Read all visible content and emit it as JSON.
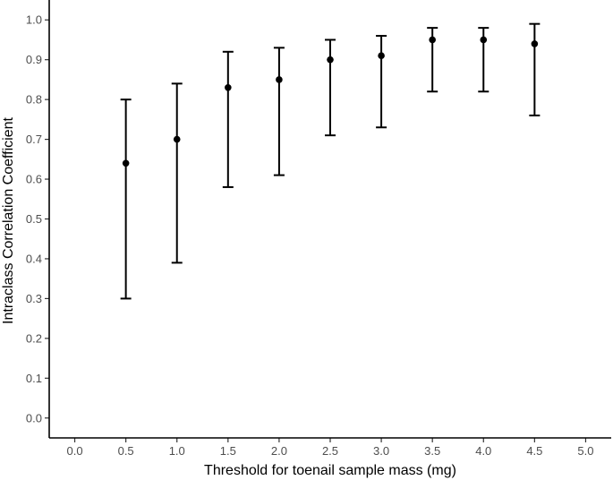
{
  "chart_data": {
    "type": "scatter",
    "title": "",
    "xlabel": "Threshold for toenail sample mass (mg)",
    "ylabel": "Intraclass Correlation Coefficient",
    "xlim": [
      -0.25,
      5.25
    ],
    "ylim": [
      -0.05,
      1.05
    ],
    "x_ticks": [
      0.0,
      0.5,
      1.0,
      1.5,
      2.0,
      2.5,
      3.0,
      3.5,
      4.0,
      4.5,
      5.0
    ],
    "x_tick_labels": [
      "0.0",
      "0.5",
      "1.0",
      "1.5",
      "2.0",
      "2.5",
      "3.0",
      "3.5",
      "4.0",
      "4.5",
      "5.0"
    ],
    "y_ticks": [
      0.0,
      0.1,
      0.2,
      0.3,
      0.4,
      0.5,
      0.6,
      0.7,
      0.8,
      0.9,
      1.0
    ],
    "y_tick_labels": [
      "0.0",
      "0.1",
      "0.2",
      "0.3",
      "0.4",
      "0.5",
      "0.6",
      "0.7",
      "0.8",
      "0.9",
      "1.0"
    ],
    "grid": false,
    "series": [
      {
        "x": [
          0.5,
          1.0,
          1.5,
          2.0,
          2.5,
          3.0,
          3.5,
          4.0,
          4.5
        ],
        "y": [
          0.64,
          0.7,
          0.83,
          0.85,
          0.9,
          0.91,
          0.95,
          0.95,
          0.94
        ],
        "lower": [
          0.3,
          0.39,
          0.58,
          0.61,
          0.71,
          0.73,
          0.82,
          0.82,
          0.76
        ],
        "upper": [
          0.8,
          0.84,
          0.92,
          0.93,
          0.95,
          0.96,
          0.98,
          0.98,
          0.99
        ]
      }
    ],
    "colors": {
      "points": "#000000",
      "axis": "#000000",
      "tick_labels": "#4d4d4d"
    }
  }
}
